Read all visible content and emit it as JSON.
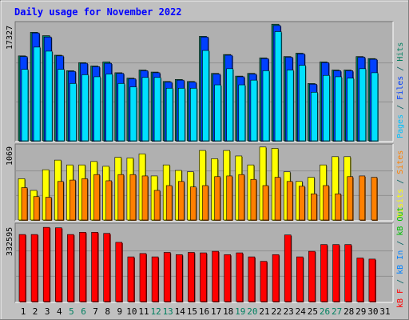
{
  "chart_data": [
    {
      "type": "bar",
      "title": "Daily usage for November 2022",
      "panel": "top",
      "ymax_label": "17327",
      "right_label": [
        {
          "text": "Pages",
          "color": "#00c0ff"
        },
        {
          "text": " / ",
          "color": "#006060"
        },
        {
          "text": "Files",
          "color": "#0040ff"
        },
        {
          "text": " / ",
          "color": "#006060"
        },
        {
          "text": "Hits",
          "color": "#008060"
        }
      ],
      "ylim": [
        0,
        17327
      ],
      "categories": [
        "1",
        "2",
        "3",
        "4",
        "5",
        "6",
        "7",
        "8",
        "9",
        "10",
        "11",
        "12",
        "13",
        "14",
        "15",
        "16",
        "17",
        "18",
        "19",
        "20",
        "21",
        "22",
        "23",
        "24",
        "25",
        "26",
        "27",
        "28",
        "29",
        "30",
        "31"
      ],
      "series": [
        {
          "name": "Hits",
          "color": "#008060",
          "values": [
            12600,
            16100,
            15600,
            12700,
            10400,
            11600,
            11100,
            11700,
            10100,
            9300,
            10500,
            10200,
            8800,
            9100,
            8800,
            15500,
            10000,
            12800,
            9600,
            10000,
            12300,
            17300,
            12500,
            13000,
            8500,
            11700,
            10500,
            10500,
            12500,
            12200,
            null
          ]
        },
        {
          "name": "Files",
          "color": "#0040ff",
          "values": [
            12500,
            16000,
            15400,
            12600,
            10300,
            11500,
            11000,
            11500,
            10000,
            9200,
            10400,
            10100,
            8700,
            9000,
            8700,
            15400,
            9900,
            12700,
            9500,
            9900,
            12200,
            17100,
            12400,
            12900,
            8400,
            11600,
            10400,
            10400,
            12400,
            12100,
            null
          ]
        },
        {
          "name": "Pages",
          "color": "#00e0ff",
          "values": [
            10600,
            13900,
            13300,
            10600,
            8500,
            9800,
            9500,
            9900,
            8500,
            8000,
            9400,
            9400,
            7800,
            7800,
            7800,
            13400,
            8300,
            10700,
            8300,
            9000,
            10400,
            16200,
            10500,
            11200,
            7200,
            9700,
            9500,
            9300,
            10700,
            10100,
            null
          ]
        }
      ],
      "x_label_colors": {
        "5": "#008060",
        "6": "#008060",
        "12": "#008060",
        "13": "#008060",
        "19": "#008060",
        "20": "#008060",
        "26": "#008060",
        "27": "#008060"
      }
    },
    {
      "type": "bar",
      "panel": "middle",
      "ymax_label": "1069",
      "right_label": [
        {
          "text": "Visits",
          "color": "#ffff00"
        },
        {
          "text": " / ",
          "color": "#006060"
        },
        {
          "text": "Sites",
          "color": "#ff8000"
        }
      ],
      "ylim": [
        0,
        1069
      ],
      "series": [
        {
          "name": "Visits",
          "color": "#ffff00",
          "values": [
            600,
            430,
            730,
            870,
            800,
            800,
            850,
            780,
            910,
            900,
            960,
            640,
            800,
            720,
            700,
            1010,
            890,
            1010,
            930,
            800,
            1060,
            1040,
            700,
            560,
            620,
            800,
            920,
            920,
            null,
            null,
            null
          ]
        },
        {
          "name": "Sites",
          "color": "#ff8000",
          "values": [
            470,
            340,
            330,
            560,
            580,
            600,
            660,
            570,
            660,
            660,
            640,
            430,
            500,
            560,
            480,
            500,
            630,
            640,
            660,
            590,
            500,
            620,
            560,
            490,
            380,
            500,
            380,
            630,
            640,
            620,
            null
          ]
        }
      ]
    },
    {
      "type": "bar",
      "panel": "bottom",
      "ymax_label": "332595",
      "right_label": [
        {
          "text": "kB F",
          "color": "#ff0000"
        },
        {
          "text": " / ",
          "color": "#006060"
        },
        {
          "text": "kB In",
          "color": "#0080ff"
        },
        {
          "text": " / ",
          "color": "#006060"
        },
        {
          "text": "kB Out",
          "color": "#00c000"
        }
      ],
      "ylim": [
        0,
        332595
      ],
      "series": [
        {
          "name": "kB F",
          "color": "#ff0000",
          "values": [
            300000,
            300000,
            332000,
            330000,
            300000,
            310000,
            310000,
            305000,
            265000,
            200000,
            215000,
            200000,
            220000,
            210000,
            220000,
            218000,
            225000,
            210000,
            218000,
            200000,
            180000,
            210000,
            298000,
            200000,
            225000,
            255000,
            255000,
            255000,
            195000,
            190000,
            null
          ]
        }
      ]
    }
  ]
}
